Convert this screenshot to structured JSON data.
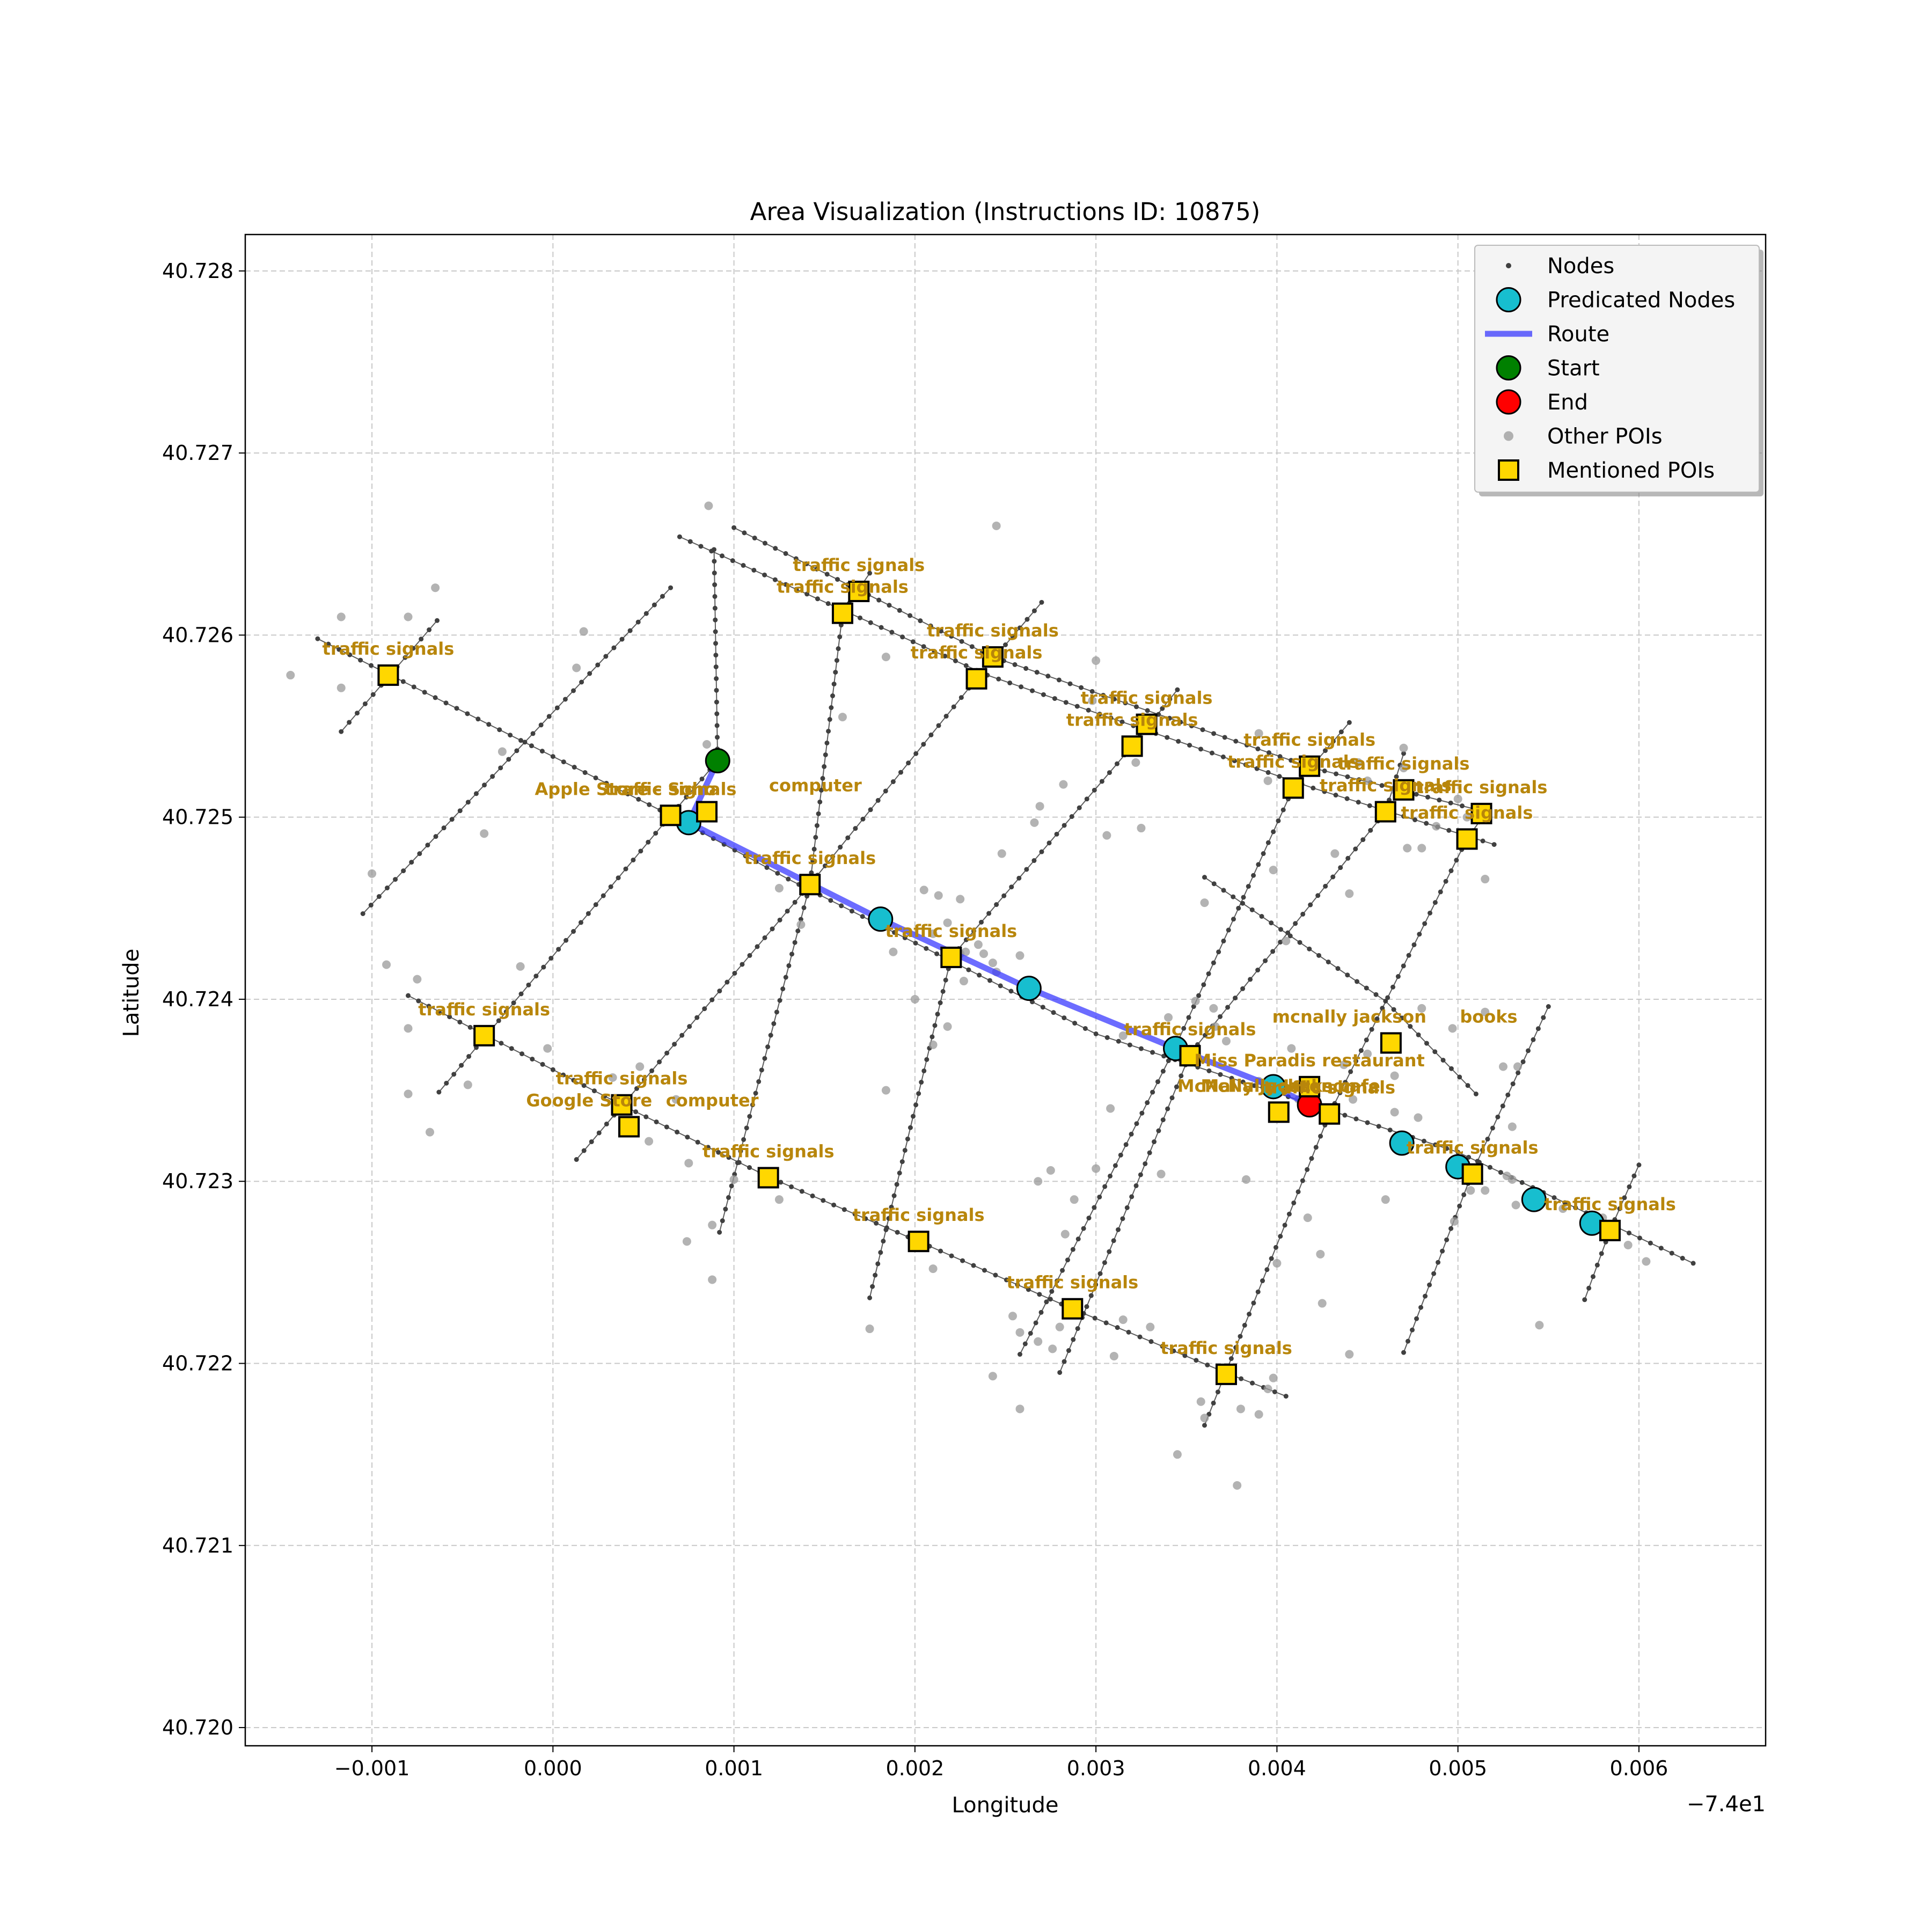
{
  "chart_data": {
    "type": "scatter",
    "title": "Area Visualization (Instructions ID: 10875)",
    "xlabel": "Longitude",
    "ylabel": "Latitude",
    "x_offset_label": "−7.4e1",
    "xlim": [
      -0.0017,
      0.0067
    ],
    "ylim": [
      40.7199,
      40.7282
    ],
    "x_ticks": [
      -0.001,
      0.0,
      0.001,
      0.002,
      0.003,
      0.004,
      0.005,
      0.006
    ],
    "x_tick_labels": [
      "−0.001",
      "0.000",
      "0.001",
      "0.002",
      "0.003",
      "0.004",
      "0.005",
      "0.006"
    ],
    "y_ticks": [
      40.72,
      40.721,
      40.722,
      40.723,
      40.724,
      40.725,
      40.726,
      40.727,
      40.728
    ],
    "y_tick_labels": [
      "40.720",
      "40.721",
      "40.722",
      "40.723",
      "40.724",
      "40.725",
      "40.726",
      "40.727",
      "40.728"
    ],
    "grid": true,
    "legend_position": "top-right",
    "legend": [
      {
        "label": "Nodes",
        "kind": "node"
      },
      {
        "label": "Predicated Nodes",
        "kind": "predicted"
      },
      {
        "label": "Route",
        "kind": "route"
      },
      {
        "label": "Start",
        "kind": "start"
      },
      {
        "label": "End",
        "kind": "end"
      },
      {
        "label": "Other POIs",
        "kind": "poi"
      },
      {
        "label": "Mentioned POIs",
        "kind": "mentioned"
      }
    ],
    "colors": {
      "node": "#404040",
      "edge": "#333333",
      "predicted": "#17becf",
      "route": "#3333ff",
      "start": "#008000",
      "end": "#ff0000",
      "poi": "#999999",
      "mentioned": "#ffd700",
      "annotation": "#b8860b"
    },
    "street_lines": [
      [
        [
          -0.0013,
          40.72598
        ],
        [
          0.00065,
          40.72501
        ],
        [
          0.0013,
          40.72466
        ],
        [
          0.003,
          40.72381
        ],
        [
          0.005,
          40.72316
        ],
        [
          0.0063,
          40.72255
        ]
      ],
      [
        [
          0.0007,
          40.72654
        ],
        [
          0.0024,
          40.72578
        ],
        [
          0.0042,
          40.72516
        ],
        [
          0.0052,
          40.72485
        ]
      ],
      [
        [
          0.001,
          40.72659
        ],
        [
          0.00243,
          40.72588
        ],
        [
          0.0042,
          40.72527
        ],
        [
          0.00515,
          40.72503
        ]
      ],
      [
        [
          -0.0008,
          40.72402
        ],
        [
          0.0004,
          40.72341
        ],
        [
          0.0012,
          40.72302
        ],
        [
          0.00202,
          40.72267
        ],
        [
          0.00287,
          40.7223
        ],
        [
          0.00374,
          40.72194
        ],
        [
          0.00405,
          40.72182
        ]
      ],
      [
        [
          0.0036,
          40.72467
        ],
        [
          0.0046,
          40.72399
        ],
        [
          0.0051,
          40.72348
        ]
      ],
      [
        [
          -0.00117,
          40.72547
        ],
        [
          -0.00064,
          40.72608
        ]
      ],
      [
        [
          -0.00105,
          40.72447
        ],
        [
          0.00065,
          40.72626
        ]
      ],
      [
        [
          -0.00063,
          40.72349
        ],
        [
          0.00065,
          40.72501
        ],
        [
          0.00091,
          40.72531
        ],
        [
          0.00089,
          40.72647
        ]
      ],
      [
        [
          0.00013,
          40.72312
        ],
        [
          0.00142,
          40.72463
        ],
        [
          0.0016,
          40.72612
        ],
        [
          0.00175,
          40.72634
        ]
      ],
      [
        [
          0.00092,
          40.72272
        ],
        [
          0.00142,
          40.72463
        ],
        [
          0.00234,
          40.72576
        ],
        [
          0.0027,
          40.72618
        ]
      ],
      [
        [
          0.00175,
          40.72236
        ],
        [
          0.0022,
          40.72423
        ],
        [
          0.0032,
          40.72539
        ],
        [
          0.00345,
          40.7257
        ]
      ],
      [
        [
          0.00258,
          40.72205
        ],
        [
          0.00343,
          40.72372
        ],
        [
          0.00409,
          40.72516
        ],
        [
          0.0044,
          40.72552
        ]
      ],
      [
        [
          0.0028,
          40.72195
        ],
        [
          0.00352,
          40.7237
        ],
        [
          0.0046,
          40.72503
        ],
        [
          0.0047,
          40.72535
        ]
      ],
      [
        [
          0.0036,
          40.72166
        ],
        [
          0.00429,
          40.72337
        ],
        [
          0.00505,
          40.72488
        ],
        [
          0.00515,
          40.72502
        ]
      ],
      [
        [
          0.0047,
          40.72206
        ],
        [
          0.00508,
          40.72305
        ],
        [
          0.0055,
          40.72396
        ]
      ],
      [
        [
          0.0057,
          40.72235
        ],
        [
          0.00584,
          40.72273
        ],
        [
          0.006,
          40.72309
        ]
      ]
    ],
    "predicted_nodes": [
      [
        0.00075,
        40.72497
      ],
      [
        0.00181,
        40.72444
      ],
      [
        0.00263,
        40.72406
      ],
      [
        0.00344,
        40.72373
      ],
      [
        0.00398,
        40.72352
      ],
      [
        0.00469,
        40.72321
      ],
      [
        0.005,
        40.72308
      ],
      [
        0.00542,
        40.7229
      ],
      [
        0.00574,
        40.72277
      ]
    ],
    "route": [
      [
        0.00091,
        40.72531
      ],
      [
        0.00075,
        40.72497
      ],
      [
        0.00181,
        40.72444
      ],
      [
        0.00263,
        40.72406
      ],
      [
        0.00344,
        40.72373
      ],
      [
        0.00398,
        40.72352
      ],
      [
        0.00418,
        40.72342
      ]
    ],
    "start": [
      0.00091,
      40.72531
    ],
    "end": [
      0.00418,
      40.72342
    ],
    "other_pois": [
      [
        -0.00145,
        40.72578
      ],
      [
        -0.00117,
        40.7261
      ],
      [
        -0.00117,
        40.72571
      ],
      [
        -0.0008,
        40.7261
      ],
      [
        -0.00065,
        40.72626
      ],
      [
        -0.001,
        40.72469
      ],
      [
        -0.00092,
        40.72419
      ],
      [
        -0.00075,
        40.72411
      ],
      [
        -0.0008,
        40.72384
      ],
      [
        -0.0008,
        40.72348
      ],
      [
        -0.00068,
        40.72327
      ],
      [
        -0.00047,
        40.72353
      ],
      [
        -0.00038,
        40.72491
      ],
      [
        -0.00028,
        40.72536
      ],
      [
        -0.00018,
        40.72418
      ],
      [
        -3e-05,
        40.72373
      ],
      [
        0.00013,
        40.72582
      ],
      [
        0.00017,
        40.72602
      ],
      [
        0.00033,
        40.72357
      ],
      [
        0.00048,
        40.72363
      ],
      [
        0.00053,
        40.72322
      ],
      [
        0.00068,
        40.72345
      ],
      [
        0.00075,
        40.7231
      ],
      [
        0.00074,
        40.72267
      ],
      [
        0.00085,
        40.7254
      ],
      [
        0.00086,
        40.72671
      ],
      [
        0.00088,
        40.72276
      ],
      [
        0.00088,
        40.72246
      ],
      [
        0.001,
        40.72301
      ],
      [
        0.00125,
        40.7229
      ],
      [
        0.00125,
        40.72461
      ],
      [
        0.00137,
        40.72441
      ],
      [
        0.0016,
        40.72555
      ],
      [
        0.00184,
        40.72588
      ],
      [
        0.00175,
        40.72219
      ],
      [
        0.00184,
        40.7235
      ],
      [
        0.00205,
        40.7246
      ],
      [
        0.00213,
        40.72457
      ],
      [
        0.0021,
        40.72436
      ],
      [
        0.00188,
        40.72426
      ],
      [
        0.002,
        40.724
      ],
      [
        0.002,
        40.72265
      ],
      [
        0.0021,
        40.72252
      ],
      [
        0.00225,
        40.72455
      ],
      [
        0.00235,
        40.7243
      ],
      [
        0.00218,
        40.72442
      ],
      [
        0.00243,
        40.7242
      ],
      [
        0.00245,
        40.7266
      ],
      [
        0.00243,
        40.72586
      ],
      [
        0.00248,
        40.7248
      ],
      [
        0.00225,
        40.72425
      ],
      [
        0.00228,
        40.72426
      ],
      [
        0.00245,
        40.72415
      ],
      [
        0.00266,
        40.72497
      ],
      [
        0.00269,
        40.72506
      ],
      [
        0.00282,
        40.72518
      ],
      [
        0.00238,
        40.72425
      ],
      [
        0.00258,
        40.72424
      ],
      [
        0.00227,
        40.7241
      ],
      [
        0.00218,
        40.72385
      ],
      [
        0.0021,
        40.72375
      ],
      [
        0.00243,
        40.72193
      ],
      [
        0.00258,
        40.72175
      ],
      [
        0.00254,
        40.72226
      ],
      [
        0.00258,
        40.72217
      ],
      [
        0.0028,
        40.7222
      ],
      [
        0.00268,
        40.72212
      ],
      [
        0.00276,
        40.72208
      ],
      [
        0.00268,
        40.723
      ],
      [
        0.00288,
        40.7229
      ],
      [
        0.00275,
        40.72306
      ],
      [
        0.00283,
        40.72271
      ],
      [
        0.003,
        40.72586
      ],
      [
        0.00298,
        40.72564
      ],
      [
        0.00306,
        40.7249
      ],
      [
        0.00322,
        40.7253
      ],
      [
        0.0033,
        40.72552
      ],
      [
        0.00325,
        40.72494
      ],
      [
        0.0034,
        40.7239
      ],
      [
        0.00315,
        40.7238
      ],
      [
        0.00308,
        40.7234
      ],
      [
        0.003,
        40.72307
      ],
      [
        0.0031,
        40.72204
      ],
      [
        0.00315,
        40.72224
      ],
      [
        0.0033,
        40.7222
      ],
      [
        0.00345,
        40.7215
      ],
      [
        0.00358,
        40.72179
      ],
      [
        0.0036,
        40.7217
      ],
      [
        0.00378,
        40.72133
      ],
      [
        0.0038,
        40.72175
      ],
      [
        0.0039,
        40.72172
      ],
      [
        0.00395,
        40.72186
      ],
      [
        0.00398,
        40.72192
      ],
      [
        0.00336,
        40.72304
      ],
      [
        0.0036,
        40.72453
      ],
      [
        0.00372,
        40.72377
      ],
      [
        0.00366,
        40.72385
      ],
      [
        0.00365,
        40.72395
      ],
      [
        0.00355,
        40.72399
      ],
      [
        0.0039,
        40.72546
      ],
      [
        0.00395,
        40.7252
      ],
      [
        0.00398,
        40.72471
      ],
      [
        0.00405,
        40.72432
      ],
      [
        0.0044,
        40.72458
      ],
      [
        0.00432,
        40.7248
      ],
      [
        0.00445,
        40.7253
      ],
      [
        0.0045,
        40.7252
      ],
      [
        0.00465,
        40.72515
      ],
      [
        0.0047,
        40.72538
      ],
      [
        0.0047,
        40.72527
      ],
      [
        0.00472,
        40.72483
      ],
      [
        0.0048,
        40.72483
      ],
      [
        0.00488,
        40.72495
      ],
      [
        0.005,
        40.7251
      ],
      [
        0.00505,
        40.725
      ],
      [
        0.00515,
        40.72466
      ],
      [
        0.0045,
        40.7237
      ],
      [
        0.00465,
        40.72358
      ],
      [
        0.0048,
        40.72395
      ],
      [
        0.00497,
        40.72384
      ],
      [
        0.00515,
        40.72393
      ],
      [
        0.00525,
        40.72363
      ],
      [
        0.00533,
        40.72363
      ],
      [
        0.0053,
        40.7233
      ],
      [
        0.0053,
        40.72301
      ],
      [
        0.00527,
        40.72303
      ],
      [
        0.00478,
        40.72335
      ],
      [
        0.00465,
        40.72338
      ],
      [
        0.00442,
        40.72345
      ],
      [
        0.0042,
        40.72353
      ],
      [
        0.00412,
        40.72345
      ],
      [
        0.00437,
        40.72364
      ],
      [
        0.00408,
        40.72373
      ],
      [
        0.00383,
        40.72301
      ],
      [
        0.0039,
        40.72355
      ],
      [
        0.004,
        40.72255
      ],
      [
        0.00424,
        40.7226
      ],
      [
        0.00417,
        40.7228
      ],
      [
        0.00425,
        40.72233
      ],
      [
        0.0044,
        40.72205
      ],
      [
        0.0046,
        40.7229
      ],
      [
        0.00507,
        40.72295
      ],
      [
        0.00545,
        40.72221
      ],
      [
        0.00558,
        40.72285
      ],
      [
        0.0058,
        40.7228
      ],
      [
        0.00594,
        40.72265
      ],
      [
        0.00604,
        40.72256
      ],
      [
        0.00532,
        40.72287
      ],
      [
        0.00515,
        40.72295
      ],
      [
        0.00498,
        40.72278
      ]
    ],
    "mentioned_pois": [
      [
        -0.00091,
        40.72578
      ],
      [
        0.00065,
        40.72501
      ],
      [
        0.00085,
        40.72503
      ],
      [
        0.00142,
        40.72463
      ],
      [
        0.0016,
        40.72612
      ],
      [
        0.00169,
        40.72624
      ],
      [
        0.00234,
        40.72576
      ],
      [
        0.00243,
        40.72588
      ],
      [
        0.0032,
        40.72539
      ],
      [
        0.00328,
        40.72551
      ],
      [
        0.00409,
        40.72516
      ],
      [
        0.00418,
        40.72528
      ],
      [
        0.0046,
        40.72503
      ],
      [
        0.0047,
        40.72515
      ],
      [
        0.00505,
        40.72488
      ],
      [
        0.00513,
        40.72502
      ],
      [
        0.0022,
        40.72423
      ],
      [
        -0.00038,
        40.7238
      ],
      [
        0.00038,
        40.72342
      ],
      [
        0.00042,
        40.7233
      ],
      [
        0.00119,
        40.72302
      ],
      [
        0.00202,
        40.72267
      ],
      [
        0.00287,
        40.7223
      ],
      [
        0.00372,
        40.72194
      ],
      [
        0.00352,
        40.72369
      ],
      [
        0.00463,
        40.72376
      ],
      [
        0.00418,
        40.72352
      ],
      [
        0.00401,
        40.72338
      ],
      [
        0.00429,
        40.72337
      ],
      [
        0.00508,
        40.72304
      ],
      [
        0.00584,
        40.72273
      ]
    ],
    "annotations": [
      {
        "text": "traffic signals",
        "x": -0.00091,
        "y": 40.72578
      },
      {
        "text": "Apple Store - Soho",
        "x": 0.0004,
        "y": 40.72501
      },
      {
        "text": "traffic signals",
        "x": 0.00065,
        "y": 40.72501
      },
      {
        "text": "computer",
        "x": 0.00145,
        "y": 40.72503
      },
      {
        "text": "traffic signals",
        "x": 0.00142,
        "y": 40.72463
      },
      {
        "text": "traffic signals",
        "x": 0.0016,
        "y": 40.72612
      },
      {
        "text": "traffic signals",
        "x": 0.00169,
        "y": 40.72624
      },
      {
        "text": "traffic signals",
        "x": 0.00234,
        "y": 40.72576
      },
      {
        "text": "traffic signals",
        "x": 0.00243,
        "y": 40.72588
      },
      {
        "text": "traffic signals",
        "x": 0.0032,
        "y": 40.72539
      },
      {
        "text": "traffic signals",
        "x": 0.00328,
        "y": 40.72551
      },
      {
        "text": "traffic signals",
        "x": 0.00409,
        "y": 40.72516
      },
      {
        "text": "traffic signals",
        "x": 0.00418,
        "y": 40.72528
      },
      {
        "text": "traffic signals",
        "x": 0.0046,
        "y": 40.72503
      },
      {
        "text": "traffic signals",
        "x": 0.0047,
        "y": 40.72515
      },
      {
        "text": "traffic signals",
        "x": 0.00505,
        "y": 40.72488
      },
      {
        "text": "traffic signals",
        "x": 0.00513,
        "y": 40.72502
      },
      {
        "text": "traffic signals",
        "x": 0.0022,
        "y": 40.72423
      },
      {
        "text": "traffic signals",
        "x": -0.00038,
        "y": 40.7238
      },
      {
        "text": "traffic signals",
        "x": 0.00038,
        "y": 40.72342
      },
      {
        "text": "Google Store",
        "x": 0.0002,
        "y": 40.7233
      },
      {
        "text": "computer",
        "x": 0.00088,
        "y": 40.7233
      },
      {
        "text": "traffic signals",
        "x": 0.00119,
        "y": 40.72302
      },
      {
        "text": "traffic signals",
        "x": 0.00202,
        "y": 40.72267
      },
      {
        "text": "traffic signals",
        "x": 0.00287,
        "y": 40.7223
      },
      {
        "text": "traffic signals",
        "x": 0.00372,
        "y": 40.72194
      },
      {
        "text": "traffic signals",
        "x": 0.00352,
        "y": 40.72369
      },
      {
        "text": "mcnally jackson",
        "x": 0.0044,
        "y": 40.72376
      },
      {
        "text": "books",
        "x": 0.00517,
        "y": 40.72376
      },
      {
        "text": "Miss Paradis restaurant",
        "x": 0.00418,
        "y": 40.72352
      },
      {
        "text": "McNally Jackson cafe",
        "x": 0.00401,
        "y": 40.72338
      },
      {
        "text": "McNally Jackson",
        "x": 0.00401,
        "y": 40.72338
      },
      {
        "text": "traffic signals",
        "x": 0.00429,
        "y": 40.72337
      },
      {
        "text": "traffic signals",
        "x": 0.00508,
        "y": 40.72304
      },
      {
        "text": "traffic signals",
        "x": 0.00584,
        "y": 40.72273
      }
    ]
  }
}
